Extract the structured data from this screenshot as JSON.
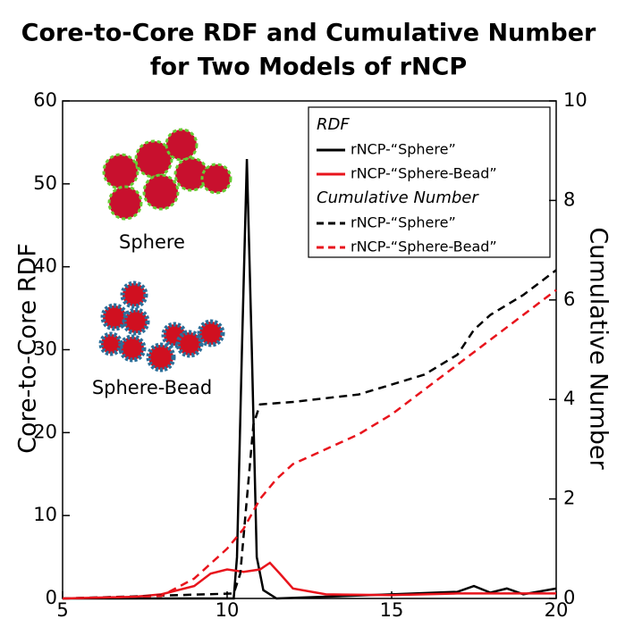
{
  "chart_data": {
    "type": "line",
    "title": [
      "Core-to-Core RDF and Cumulative Number",
      "for Two Models of rNCP"
    ],
    "ylabel": "Core-to-Core RDF",
    "y2label": "Cumulative Number",
    "xlim": [
      5,
      20
    ],
    "xticks": [
      5,
      10,
      15,
      20
    ],
    "ylim": [
      0,
      60
    ],
    "yticks": [
      0,
      10,
      20,
      30,
      40,
      50,
      60
    ],
    "y2lim": [
      0,
      10
    ],
    "y2ticks": [
      0,
      2,
      4,
      6,
      8,
      10
    ],
    "legend_titles": [
      "RDF",
      "Cumulative Number"
    ],
    "annotations": [
      "Sphere",
      "Sphere-Bead"
    ],
    "series": [
      {
        "name": "rNCP-“Sphere”",
        "color": "#000000",
        "dashed": false,
        "x": [
          5,
          10.2,
          10.3,
          10.45,
          10.6,
          10.75,
          10.9,
          11.1,
          11.5,
          15,
          17,
          17.5,
          18,
          18.5,
          19,
          20
        ],
        "values": [
          0,
          0,
          5,
          30,
          53,
          30,
          5,
          1,
          0,
          0.5,
          0.8,
          1.5,
          0.7,
          1.2,
          0.5,
          1.2
        ]
      },
      {
        "name": "rNCP-“Sphere-Bead”",
        "color": "#e8141c",
        "dashed": false,
        "x": [
          5,
          7.2,
          8,
          9,
          9.5,
          10,
          10.5,
          11,
          11.3,
          11.6,
          12,
          13,
          15,
          17,
          20
        ],
        "values": [
          0,
          0.2,
          0.5,
          1.5,
          3,
          3.5,
          3.2,
          3.5,
          4.3,
          3,
          1.2,
          0.5,
          0.4,
          0.6,
          0.6
        ]
      },
      {
        "name": "rNCP-“Sphere”",
        "color": "#000000",
        "dashed": true,
        "axis": "y2",
        "x": [
          5,
          10.2,
          10.4,
          10.6,
          10.8,
          11,
          12,
          14,
          16,
          17,
          17.5,
          18,
          19,
          20
        ],
        "values": [
          0,
          0.1,
          0.5,
          2,
          3.5,
          3.9,
          3.95,
          4.1,
          4.5,
          4.9,
          5.4,
          5.7,
          6.1,
          6.6
        ]
      },
      {
        "name": "rNCP-“Sphere-Bead”",
        "color": "#e8141c",
        "dashed": true,
        "axis": "y2",
        "x": [
          5,
          8,
          9,
          10,
          10.5,
          11,
          11.5,
          12,
          13,
          14,
          15,
          16,
          17,
          18,
          19,
          20
        ],
        "values": [
          0,
          0.05,
          0.4,
          1,
          1.4,
          2,
          2.4,
          2.7,
          3,
          3.3,
          3.7,
          4.2,
          4.7,
          5.2,
          5.7,
          6.2
        ]
      }
    ]
  }
}
